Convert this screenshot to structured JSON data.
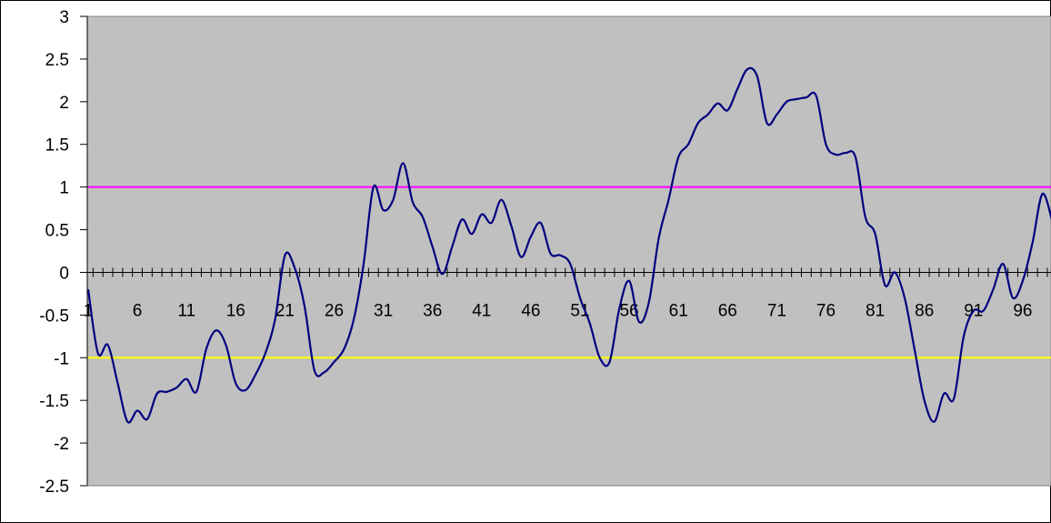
{
  "chart_data": {
    "type": "line",
    "title": "",
    "xlabel": "",
    "ylabel": "",
    "ylim": [
      -2.5,
      3
    ],
    "yticks": [
      3,
      2.5,
      2,
      1.5,
      1,
      0.5,
      0,
      -0.5,
      -1,
      -1.5,
      -2,
      -2.5
    ],
    "x_tick_labels": [
      "1",
      "6",
      "11",
      "16",
      "21",
      "26",
      "31",
      "36",
      "41",
      "46",
      "51",
      "56",
      "61",
      "66",
      "71",
      "76",
      "81",
      "86",
      "91",
      "96"
    ],
    "x": [
      1,
      2,
      3,
      4,
      5,
      6,
      7,
      8,
      9,
      10,
      11,
      12,
      13,
      14,
      15,
      16,
      17,
      18,
      19,
      20,
      21,
      22,
      23,
      24,
      25,
      26,
      27,
      28,
      29,
      30,
      31,
      32,
      33,
      34,
      35,
      36,
      37,
      38,
      39,
      40,
      41,
      42,
      43,
      44,
      45,
      46,
      47,
      48,
      49,
      50,
      51,
      52,
      53,
      54,
      55,
      56,
      57,
      58,
      59,
      60,
      61,
      62,
      63,
      64,
      65,
      66,
      67,
      68,
      69,
      70,
      71,
      72,
      73,
      74,
      75,
      76,
      77,
      78,
      79,
      80,
      81,
      82,
      83,
      84,
      85,
      86,
      87,
      88,
      89,
      90,
      91,
      92,
      93,
      94,
      95,
      96,
      97,
      98,
      99
    ],
    "grid": false,
    "legend": "none",
    "plot_background": "#c0c0c0",
    "series": [
      {
        "color": "#000080",
        "values": [
          -0.2,
          -0.95,
          -0.85,
          -1.3,
          -1.75,
          -1.62,
          -1.72,
          -1.42,
          -1.4,
          -1.35,
          -1.25,
          -1.4,
          -0.9,
          -0.68,
          -0.85,
          -1.3,
          -1.38,
          -1.2,
          -0.95,
          -0.55,
          0.2,
          0.05,
          -0.4,
          -1.15,
          -1.17,
          -1.05,
          -0.9,
          -0.55,
          0.1,
          1.0,
          0.73,
          0.85,
          1.28,
          0.82,
          0.65,
          0.3,
          -0.02,
          0.3,
          0.62,
          0.45,
          0.68,
          0.58,
          0.85,
          0.55,
          0.18,
          0.42,
          0.58,
          0.22,
          0.2,
          0.1,
          -0.3,
          -0.6,
          -1.0,
          -1.05,
          -0.42,
          -0.1,
          -0.58,
          -0.35,
          0.4,
          0.85,
          1.35,
          1.5,
          1.75,
          1.85,
          1.98,
          1.9,
          2.15,
          2.38,
          2.3,
          1.75,
          1.85,
          2.0,
          2.03,
          2.05,
          2.07,
          1.5,
          1.38,
          1.4,
          1.35,
          0.65,
          0.45,
          -0.15,
          0.0,
          -0.3,
          -0.9,
          -1.5,
          -1.75,
          -1.42,
          -1.48,
          -0.75,
          -0.45,
          -0.45,
          -0.2,
          0.1,
          -0.3,
          -0.1,
          0.35,
          0.92,
          0.6
        ]
      }
    ],
    "reference_lines": [
      {
        "y": 1,
        "color": "#ff00ff"
      },
      {
        "y": -1,
        "color": "#ffff00"
      }
    ]
  }
}
